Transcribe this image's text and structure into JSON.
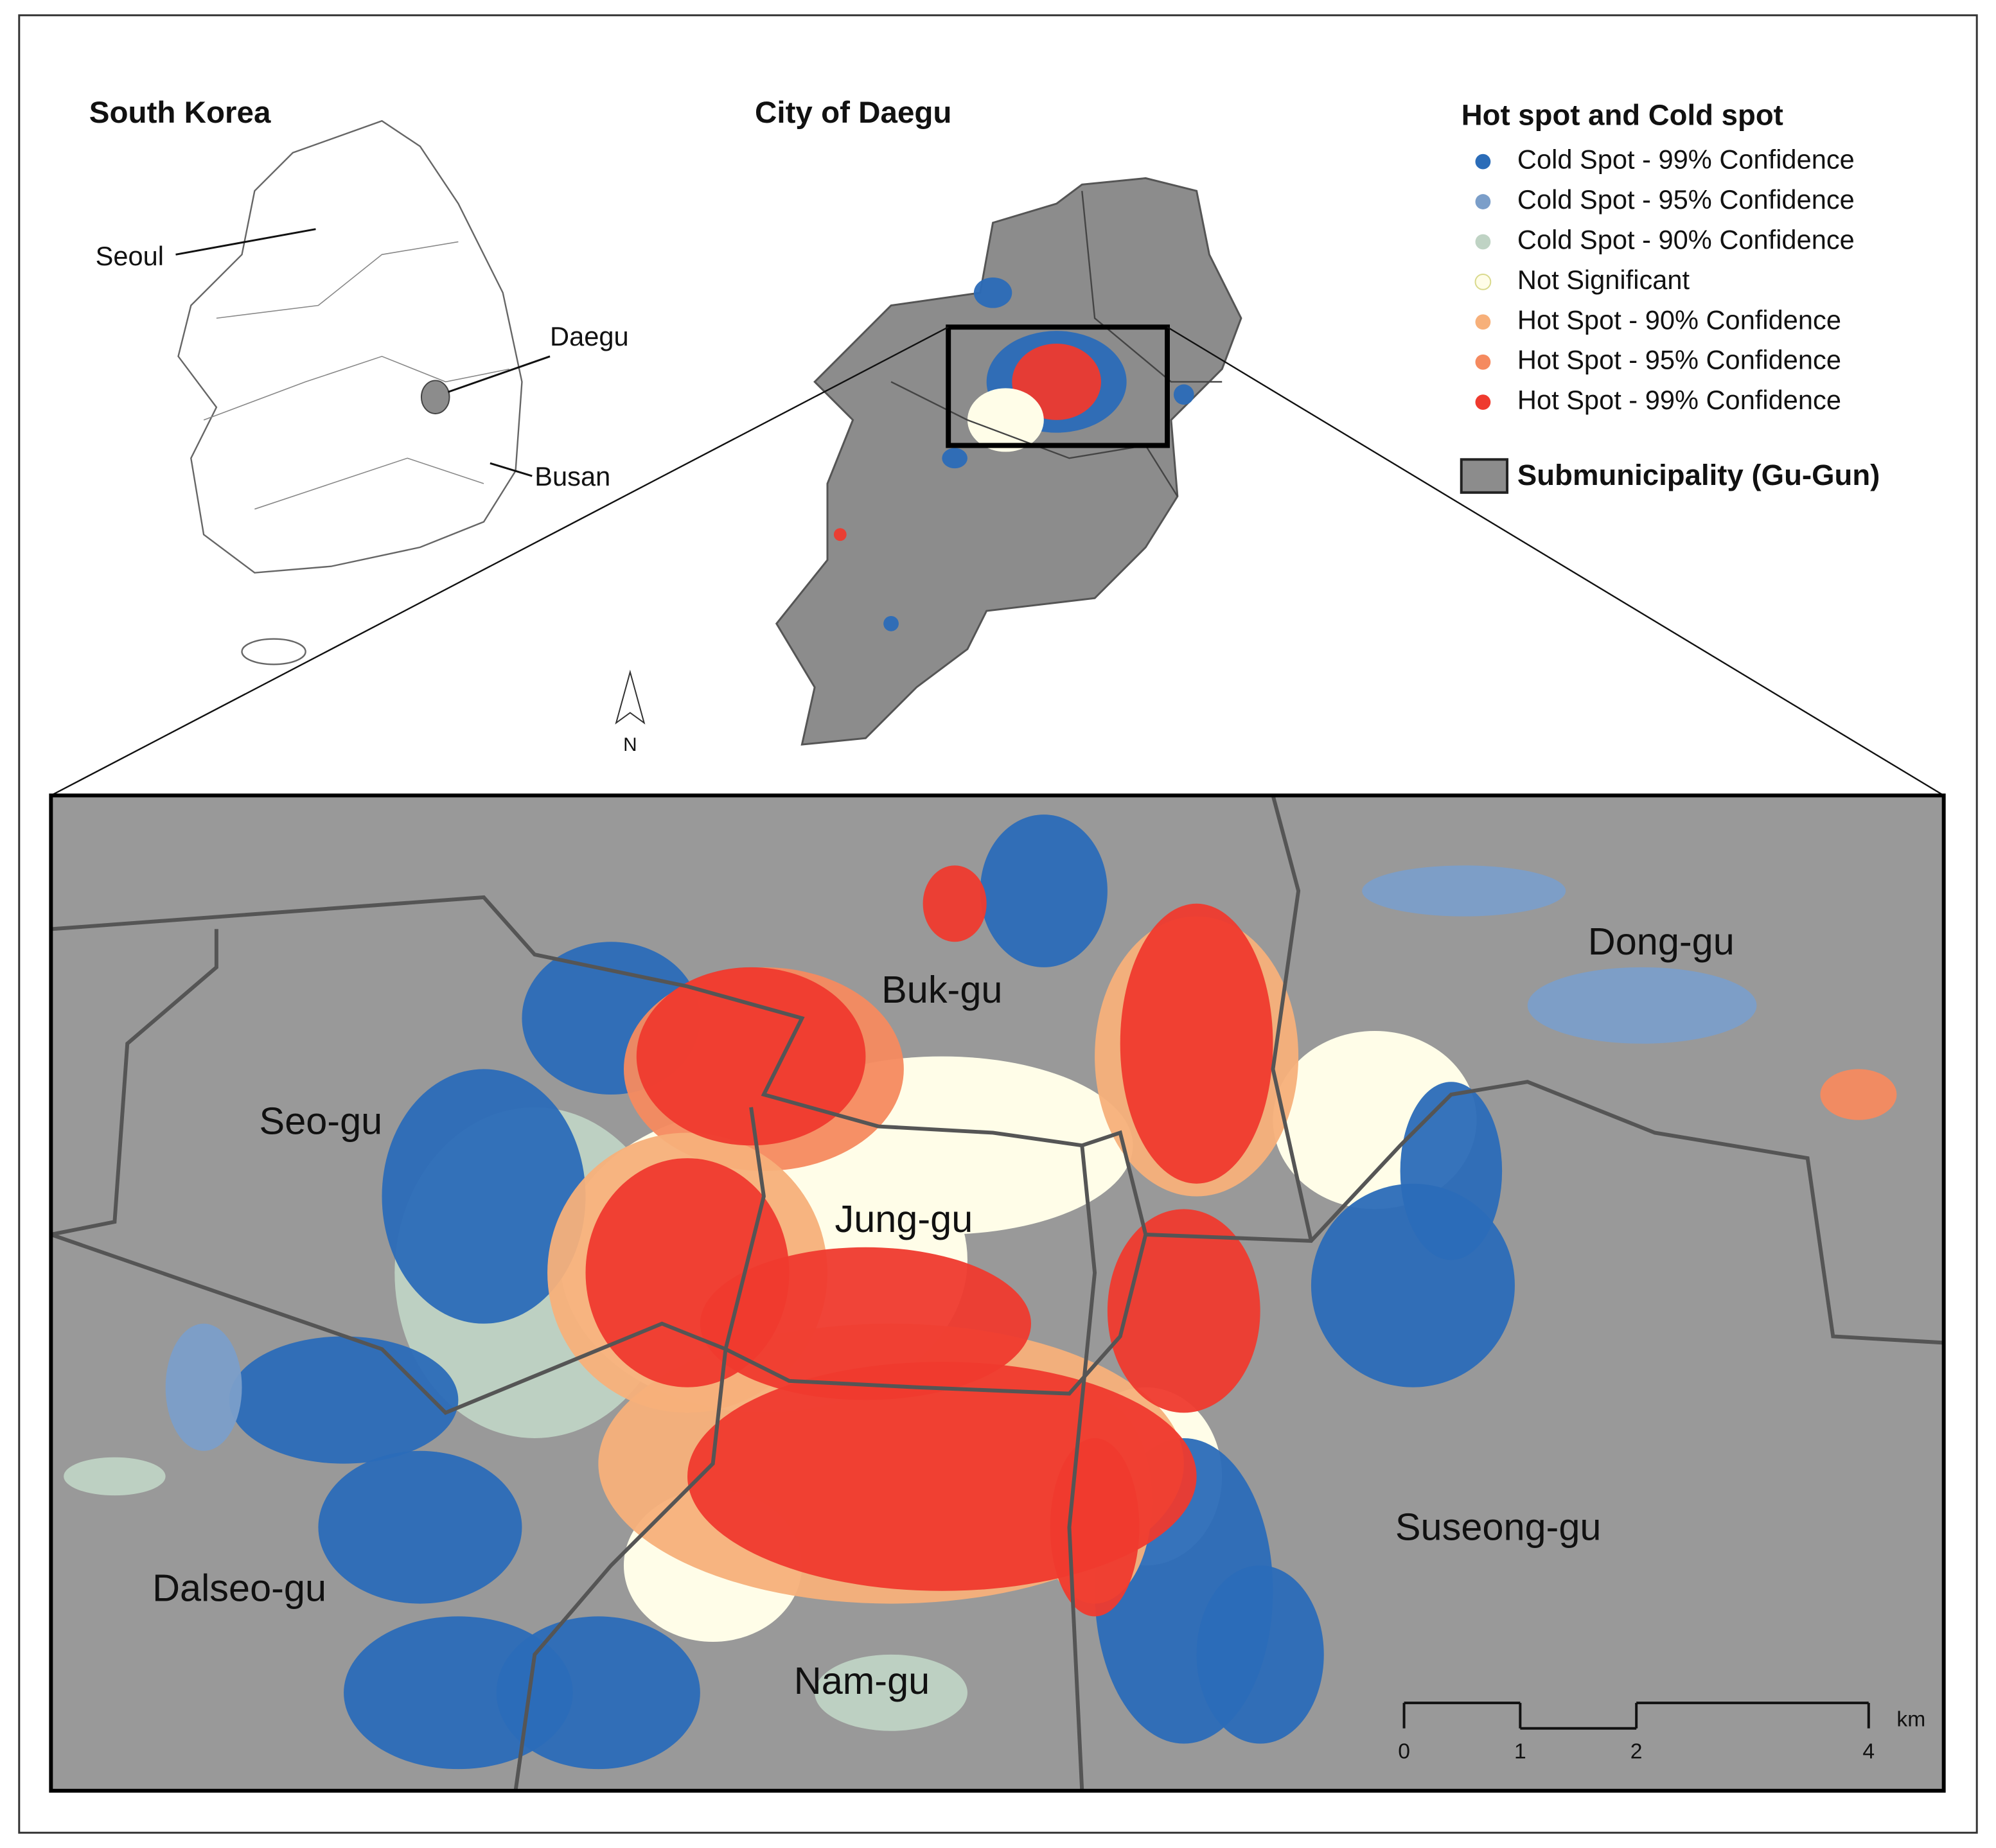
{
  "panels": {
    "south_korea": {
      "title": "South Korea",
      "labels": [
        "Seoul",
        "Daegu",
        "Busan"
      ]
    },
    "daegu": {
      "title": "City of Daegu"
    }
  },
  "north_arrow": "N",
  "legend": {
    "title": "Hot spot and Cold spot",
    "items": [
      {
        "label": "Cold Spot - 99% Confidence",
        "color": "#2b6cb8"
      },
      {
        "label": "Cold Spot - 95% Confidence",
        "color": "#7b9ec9"
      },
      {
        "label": "Cold Spot - 90% Confidence",
        "color": "#bfd3c4"
      },
      {
        "label": "Not Significant",
        "color": "#fffde8"
      },
      {
        "label": "Hot Spot - 90% Confidence",
        "color": "#f7b07a"
      },
      {
        "label": "Hot Spot - 95% Confidence",
        "color": "#f58a5f"
      },
      {
        "label": "Hot Spot - 99% Confidence",
        "color": "#ef3a2e"
      }
    ],
    "boundary": "Submunicipality (Gu-Gun)"
  },
  "districts": [
    "Buk-gu",
    "Dong-gu",
    "Seo-gu",
    "Jung-gu",
    "Suseong-gu",
    "Dalseo-gu",
    "Nam-gu"
  ],
  "scale_bar": {
    "ticks": [
      0,
      1,
      2,
      4
    ],
    "unit": "km"
  }
}
